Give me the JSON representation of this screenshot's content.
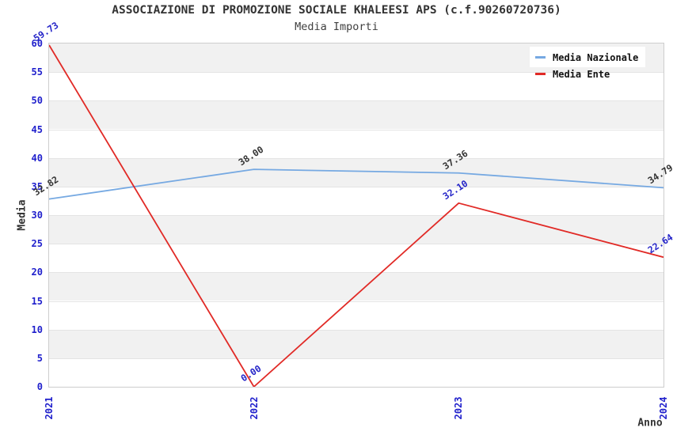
{
  "header": {
    "title": "ASSOCIAZIONE DI PROMOZIONE SOCIALE KHALEESI APS (c.f.90260720736)",
    "subtitle": "Media Importi"
  },
  "chart_data": {
    "type": "line",
    "title": "ASSOCIAZIONE DI PROMOZIONE SOCIALE KHALEESI APS (c.f.90260720736)",
    "subtitle": "Media Importi",
    "categories": [
      "2021",
      "2022",
      "2023",
      "2024"
    ],
    "series": [
      {
        "name": "Media Nazionale",
        "color": "#76a9e2",
        "label_color": "#333333",
        "values": [
          32.82,
          38.0,
          37.36,
          34.79
        ],
        "point_labels": [
          "32.82",
          "38.00",
          "37.36",
          "34.79"
        ]
      },
      {
        "name": "Media Ente",
        "color": "#e12a26",
        "label_color": "#2424c8",
        "values": [
          59.73,
          0.0,
          32.1,
          22.64
        ],
        "point_labels": [
          "59.73",
          "0.00",
          "32.10",
          "22.64"
        ]
      }
    ],
    "xlabel": "Anno",
    "ylabel": "Media",
    "ylim": [
      0,
      60
    ],
    "ytick_step": 5,
    "grid": true,
    "legend_position": "top-right",
    "colors": {
      "tick_label": "#2020cc",
      "axis_label": "#333333",
      "band_gray": "#f1f1f1",
      "band_white": "#ffffff",
      "gridline": "#e4e4e4",
      "plot_border": "#cdcdcd",
      "legend_text": "#111111",
      "legend_bg": "#ffffff"
    }
  }
}
